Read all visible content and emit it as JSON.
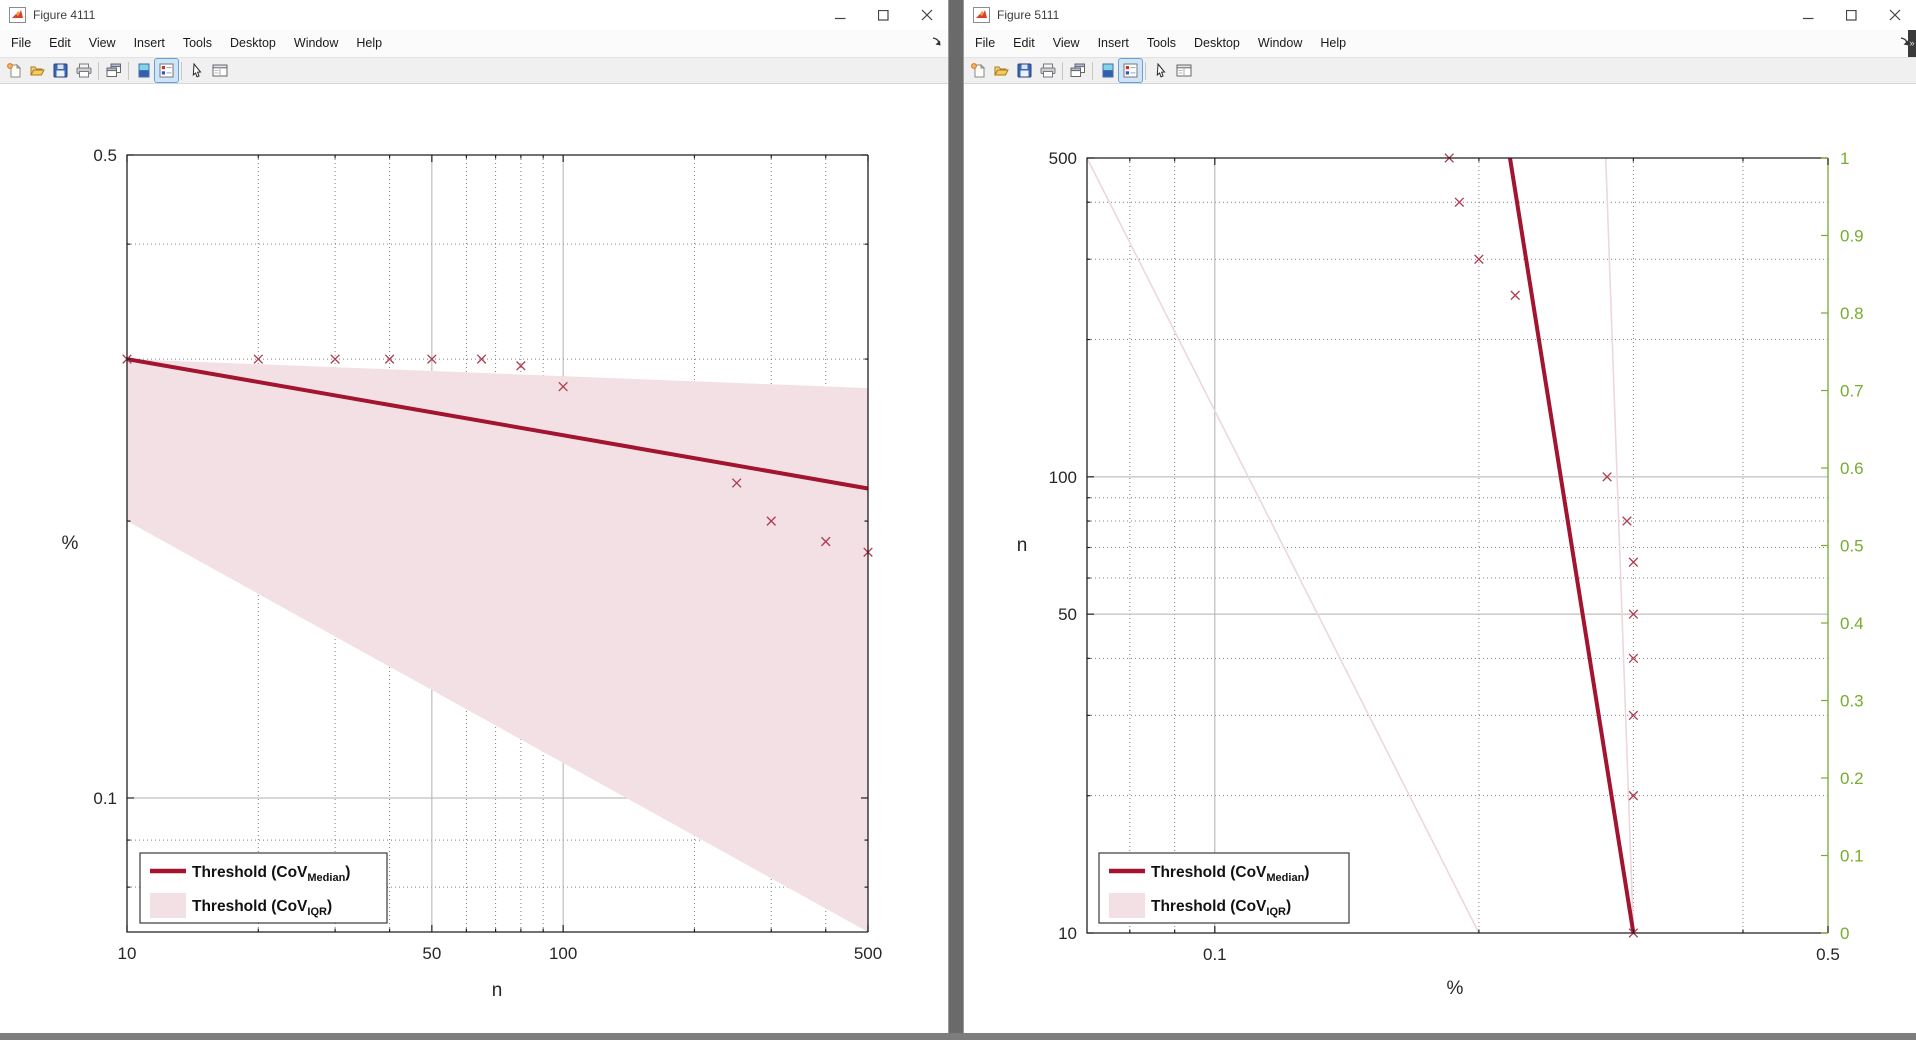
{
  "windows": [
    {
      "title": "Figure 4111",
      "menu": [
        "File",
        "Edit",
        "View",
        "Insert",
        "Tools",
        "Desktop",
        "Window",
        "Help"
      ],
      "toolbar_icons": [
        "new-document-icon",
        "open-folder-icon",
        "save-icon",
        "print-icon",
        "separator",
        "copy-figure-icon",
        "separator",
        "colormap-icon",
        "plot-browser-icon",
        "separator",
        "edit-plot-icon",
        "property-editor-icon"
      ],
      "window_controls": [
        "minimize-icon",
        "maximize-icon",
        "close-icon"
      ],
      "menu_overflow_icon": "menu-overflow-icon"
    },
    {
      "title": "Figure 5111",
      "menu": [
        "File",
        "Edit",
        "View",
        "Insert",
        "Tools",
        "Desktop",
        "Window",
        "Help"
      ],
      "toolbar_icons": [
        "new-document-icon",
        "open-folder-icon",
        "save-icon",
        "print-icon",
        "separator",
        "copy-figure-icon",
        "separator",
        "colormap-icon",
        "plot-browser-icon",
        "separator",
        "edit-plot-icon",
        "property-editor-icon"
      ],
      "window_controls": [
        "minimize-icon",
        "maximize-icon",
        "close-icon"
      ],
      "menu_overflow_icon": "menu-overflow-icon"
    }
  ],
  "colors": {
    "threshold_line": "#A2142F",
    "iqr_fill": "#F3E0E4",
    "iqr_faint_outline": "#EDD7DC",
    "marker": "#AE3B52",
    "right_axis_green": "#77AC30",
    "major_grid": "#b0b0b0",
    "minor_grid": "#808080",
    "frame": "#1f1f1f",
    "tick_text": "#262626"
  },
  "chart_data": [
    {
      "type": "line",
      "title": "",
      "xlabel": "n",
      "ylabel": "%",
      "xscale": "log",
      "yscale": "log",
      "xlim": [
        10,
        500
      ],
      "ylim": [
        0.0715,
        0.5
      ],
      "xticks": [
        {
          "v": 10,
          "label": "10"
        },
        {
          "v": 50,
          "label": "50"
        },
        {
          "v": 100,
          "label": "100"
        },
        {
          "v": 500,
          "label": "500"
        }
      ],
      "yticks": [
        {
          "v": 0.5,
          "label": "0.5"
        },
        {
          "v": 0.1,
          "label": "0.1"
        }
      ],
      "x_major_grid": [
        50,
        100
      ],
      "y_major_grid": [
        0.1
      ],
      "x_minor": [
        20,
        30,
        40,
        60,
        70,
        80,
        90,
        200,
        300,
        400
      ],
      "y_minor": [
        0.08,
        0.09,
        0.2,
        0.3,
        0.4
      ],
      "grid": true,
      "legend_position": "south-west",
      "series": [
        {
          "name": "Threshold (CoV_IQR)",
          "kind": "band",
          "x": [
            10,
            500
          ],
          "upper": [
            0.3,
            0.279
          ],
          "lower": [
            0.2,
            0.0715
          ],
          "fill": true
        },
        {
          "name": "Threshold (CoV_Median)",
          "kind": "line",
          "x": [
            10,
            500
          ],
          "y": [
            0.3,
            0.217
          ]
        },
        {
          "name": "sample-points",
          "kind": "scatter",
          "marker": "x",
          "x": [
            10,
            20,
            30,
            40,
            50,
            65,
            80,
            100,
            250,
            300,
            400,
            500
          ],
          "y": [
            0.3,
            0.3,
            0.3,
            0.3,
            0.3,
            0.3,
            0.295,
            0.28,
            0.22,
            0.2,
            0.19,
            0.185
          ]
        }
      ],
      "legend": {
        "entries": [
          {
            "sample": "line",
            "pre": "Threshold (CoV",
            "sub": "Median",
            "post": ")"
          },
          {
            "sample": "patch",
            "pre": "Threshold (CoV",
            "sub": "IQR",
            "post": ")"
          }
        ]
      }
    },
    {
      "type": "line",
      "title": "",
      "xlabel": "%",
      "ylabel": "n",
      "xscale": "log",
      "yscale": "log",
      "xlim": [
        0.0715,
        0.5
      ],
      "ylim": [
        10,
        500
      ],
      "xticks": [
        {
          "v": 0.1,
          "label": "0.1"
        },
        {
          "v": 0.5,
          "label": "0.5"
        }
      ],
      "yticks": [
        {
          "v": 500,
          "label": "500"
        },
        {
          "v": 100,
          "label": "100"
        },
        {
          "v": 50,
          "label": "50"
        },
        {
          "v": 10,
          "label": "10"
        }
      ],
      "x_major_grid": [
        0.1
      ],
      "y_major_grid": [
        50,
        100
      ],
      "x_minor": [
        0.08,
        0.09,
        0.2,
        0.3,
        0.4
      ],
      "y_minor": [
        20,
        30,
        40,
        60,
        70,
        80,
        90,
        200,
        300,
        400
      ],
      "grid": true,
      "legend_position": "south-west",
      "right_axis": {
        "lim": [
          0,
          1
        ],
        "ticks": [
          {
            "v": 1,
            "label": "1"
          },
          {
            "v": 0.9,
            "label": "0.9"
          },
          {
            "v": 0.8,
            "label": "0.8"
          },
          {
            "v": 0.7,
            "label": "0.7"
          },
          {
            "v": 0.6,
            "label": "0.6"
          },
          {
            "v": 0.5,
            "label": "0.5"
          },
          {
            "v": 0.4,
            "label": "0.4"
          },
          {
            "v": 0.3,
            "label": "0.3"
          },
          {
            "v": 0.2,
            "label": "0.2"
          },
          {
            "v": 0.1,
            "label": "0.1"
          },
          {
            "v": 0,
            "label": "0"
          }
        ]
      },
      "series": [
        {
          "name": "iqr-upper-outline",
          "kind": "line",
          "faint": true,
          "x": [
            0.279,
            0.3
          ],
          "y": [
            500,
            10
          ]
        },
        {
          "name": "iqr-lower-outline",
          "kind": "line",
          "faint": true,
          "x": [
            0.0715,
            0.2
          ],
          "y": [
            500,
            10
          ]
        },
        {
          "name": "Threshold (CoV_Median)",
          "kind": "line",
          "x": [
            0.217,
            0.3
          ],
          "y": [
            500,
            10
          ]
        },
        {
          "name": "sample-points",
          "kind": "scatter",
          "marker": "x",
          "x": [
            0.3,
            0.3,
            0.3,
            0.3,
            0.3,
            0.3,
            0.295,
            0.28,
            0.22,
            0.2,
            0.19,
            0.185
          ],
          "y": [
            10,
            20,
            30,
            40,
            50,
            65,
            80,
            100,
            250,
            300,
            400,
            500
          ]
        }
      ],
      "legend": {
        "entries": [
          {
            "sample": "line",
            "pre": "Threshold (CoV",
            "sub": "Median",
            "post": ")"
          },
          {
            "sample": "patch",
            "pre": "Threshold (CoV",
            "sub": "IQR",
            "post": ")"
          }
        ]
      }
    }
  ]
}
